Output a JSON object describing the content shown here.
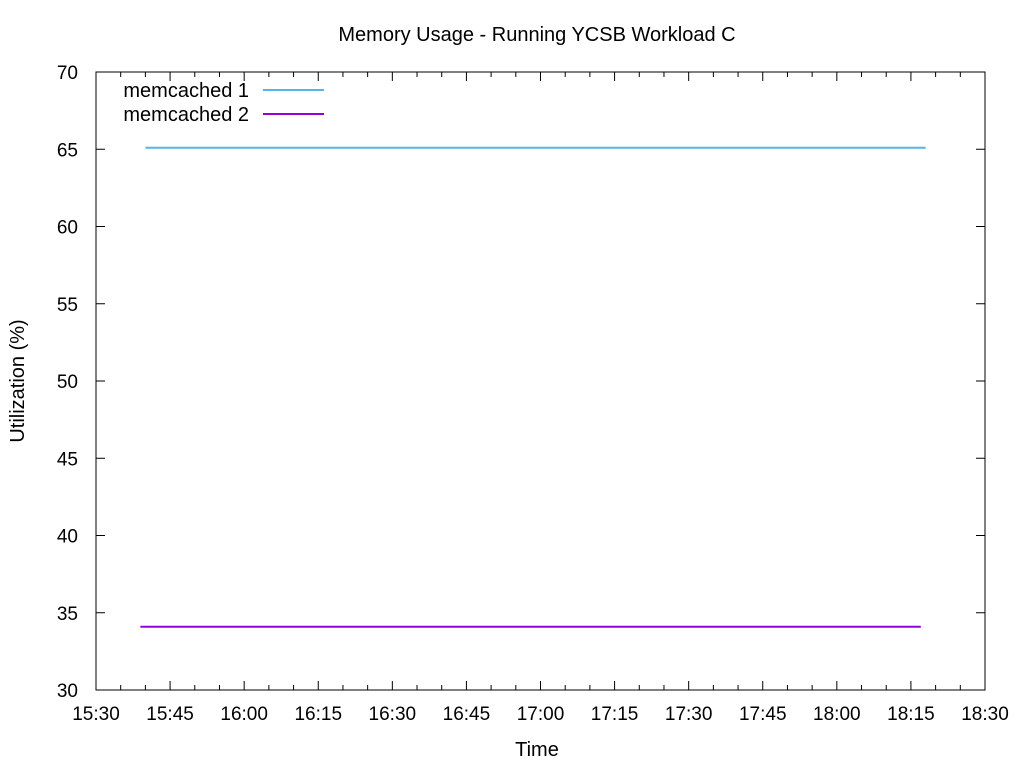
{
  "chart_data": {
    "type": "line",
    "title": "Memory Usage - Running YCSB Workload C",
    "xlabel": "Time",
    "ylabel": "Utilization (%)",
    "xlim": [
      "15:30",
      "18:30"
    ],
    "ylim": [
      30,
      70
    ],
    "x_ticks": [
      "15:30",
      "15:45",
      "16:00",
      "16:15",
      "16:30",
      "16:45",
      "17:00",
      "17:15",
      "17:30",
      "17:45",
      "18:00",
      "18:15",
      "18:30"
    ],
    "y_ticks": [
      30,
      35,
      40,
      45,
      50,
      55,
      60,
      65,
      70
    ],
    "grid": false,
    "legend_position": "top-left",
    "series": [
      {
        "name": "memcached 1",
        "color": "#56b4e9",
        "x": [
          "15:40",
          "18:18"
        ],
        "y": [
          65.1,
          65.1
        ]
      },
      {
        "name": "memcached 2",
        "color": "#9400d3",
        "x": [
          "15:39",
          "18:17"
        ],
        "y": [
          34.1,
          34.1
        ]
      }
    ]
  }
}
